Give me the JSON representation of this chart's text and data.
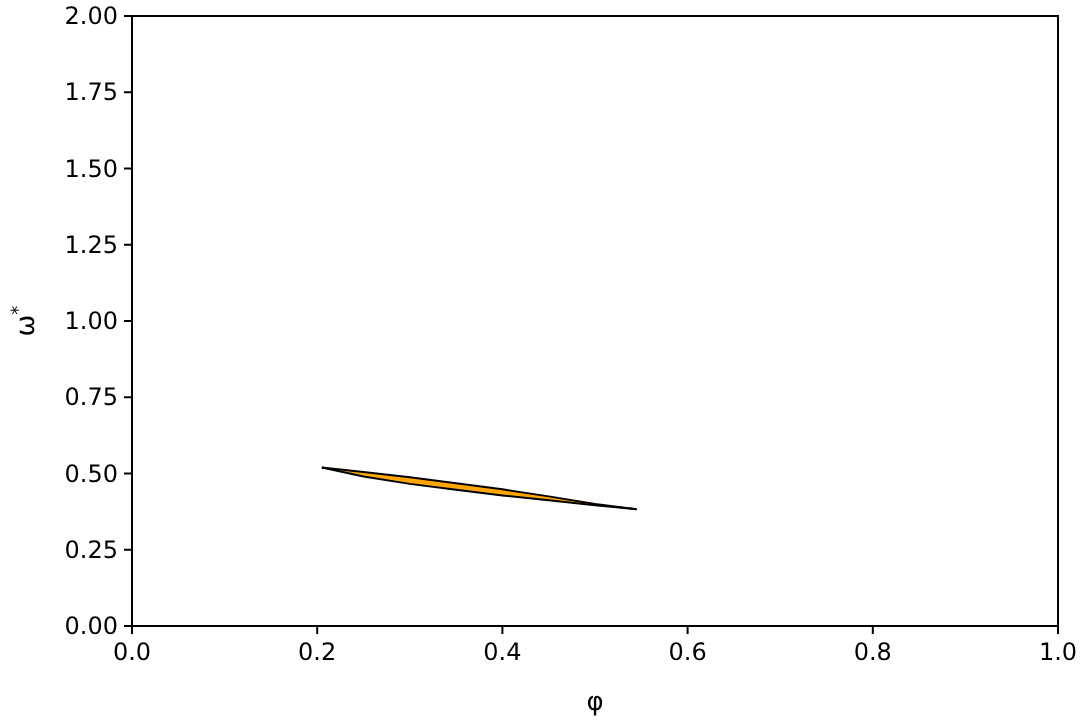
{
  "chart_data": {
    "type": "line",
    "xlabel": "φ",
    "ylabel": "ω$^{*}$",
    "x": [
      0.205,
      0.25,
      0.3,
      0.35,
      0.4,
      0.45,
      0.5,
      0.545
    ],
    "series": [
      {
        "color": "#000000",
        "values": [
          0.52,
          0.505,
          0.488,
          0.468,
          0.448,
          0.425,
          0.4,
          0.383
        ],
        "lower": [
          0.52,
          0.49,
          0.466,
          0.447,
          0.428,
          0.412,
          0.396,
          0.383
        ],
        "upper": [
          0.52,
          0.505,
          0.488,
          0.468,
          0.448,
          0.425,
          0.4,
          0.383
        ]
      }
    ],
    "xlim": [
      0,
      1
    ],
    "ylim": [
      0,
      2
    ],
    "xticks": [
      {
        "value": 0,
        "label": "0.0"
      },
      {
        "value": 0.2,
        "label": "0.2"
      },
      {
        "value": 0.4,
        "label": "0.4"
      },
      {
        "value": 0.6,
        "label": "0.6"
      },
      {
        "value": 0.8,
        "label": "0.8"
      },
      {
        "value": 1,
        "label": "1.0"
      }
    ],
    "yticks": [
      {
        "value": 0,
        "label": "0.00"
      },
      {
        "value": 0.25,
        "label": "0.25"
      },
      {
        "value": 0.5,
        "label": "0.50"
      },
      {
        "value": 0.75,
        "label": "0.75"
      },
      {
        "value": 1,
        "label": "1.00"
      },
      {
        "value": 1.25,
        "label": "1.25"
      },
      {
        "value": 1.5,
        "label": "1.50"
      },
      {
        "value": 1.75,
        "label": "1.75"
      },
      {
        "value": 2,
        "label": "2.00"
      }
    ]
  }
}
